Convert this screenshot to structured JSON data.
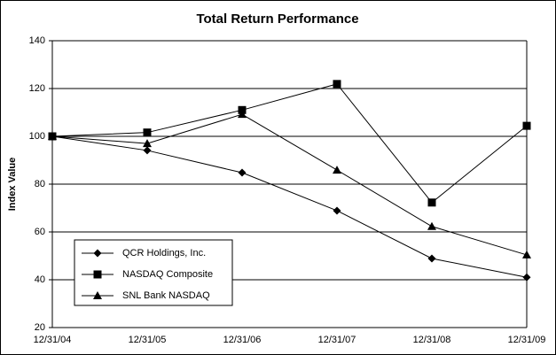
{
  "chart_data": {
    "type": "line",
    "title": "Total Return Performance",
    "y_label": "Index Value",
    "categories": [
      "12/31/04",
      "12/31/05",
      "12/31/06",
      "12/31/07",
      "12/31/08",
      "12/31/09"
    ],
    "series": [
      {
        "name": "QCR Holdings, Inc.",
        "color": "#000000",
        "marker": "diamond",
        "values": [
          100,
          94.1,
          84.8,
          68.9,
          48.9,
          41
        ]
      },
      {
        "name": "NASDAQ Composite",
        "color": "#000000",
        "marker": "square",
        "values": [
          100,
          101.6,
          111,
          121.9,
          72.3,
          104.4
        ]
      },
      {
        "name": "SNL Bank NASDAQ",
        "color": "#000000",
        "marker": "triangle",
        "values": [
          100,
          97,
          109.2,
          85.9,
          62.3,
          50.4
        ]
      }
    ],
    "ylim": [
      20,
      140
    ],
    "yticks": [
      20,
      40,
      60,
      80,
      100,
      120,
      140
    ],
    "grid": true,
    "legend": "lower left"
  }
}
